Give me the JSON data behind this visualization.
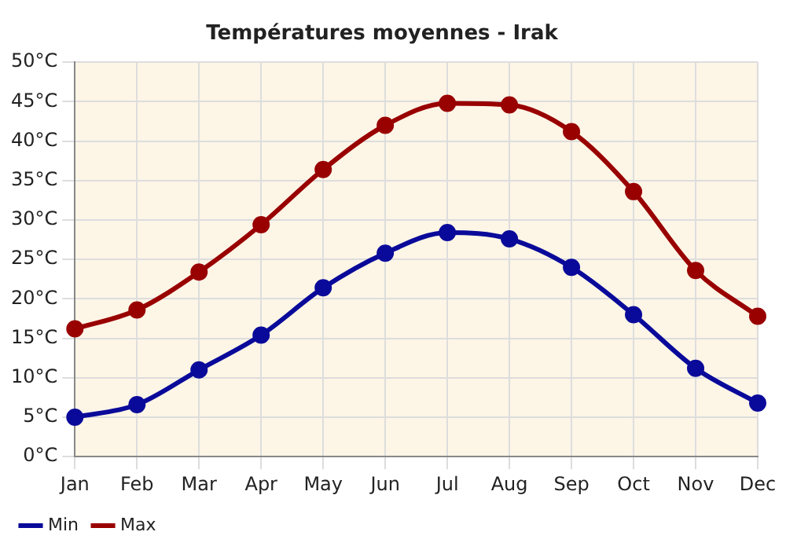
{
  "chart_data": {
    "type": "line",
    "title": "Températures moyennes - Irak",
    "categories": [
      "Jan",
      "Feb",
      "Mar",
      "Apr",
      "May",
      "Jun",
      "Jul",
      "Aug",
      "Sep",
      "Oct",
      "Nov",
      "Dec"
    ],
    "series": [
      {
        "name": "Min",
        "color": "#0a0a9a",
        "values": [
          5.0,
          6.6,
          11.0,
          15.4,
          21.4,
          25.8,
          28.4,
          27.6,
          24.0,
          18.0,
          11.2,
          6.8
        ]
      },
      {
        "name": "Max",
        "color": "#990000",
        "values": [
          16.2,
          18.6,
          23.4,
          29.4,
          36.4,
          42.0,
          44.8,
          44.6,
          41.2,
          33.6,
          23.6,
          17.8
        ]
      }
    ],
    "ylim": [
      0,
      50
    ],
    "yticks": [
      {
        "value": 0,
        "label": "0°C"
      },
      {
        "value": 5,
        "label": "5°C"
      },
      {
        "value": 10,
        "label": "10°C"
      },
      {
        "value": 15,
        "label": "15°C"
      },
      {
        "value": 20,
        "label": "20°C"
      },
      {
        "value": 25,
        "label": "25°C"
      },
      {
        "value": 30,
        "label": "30°C"
      },
      {
        "value": 35,
        "label": "35°C"
      },
      {
        "value": 40,
        "label": "40°C"
      },
      {
        "value": 45,
        "label": "45°C"
      },
      {
        "value": 50,
        "label": "50°C"
      }
    ],
    "grid": true,
    "legend": "bottom left",
    "marker": "circle",
    "line_style": "solid"
  }
}
